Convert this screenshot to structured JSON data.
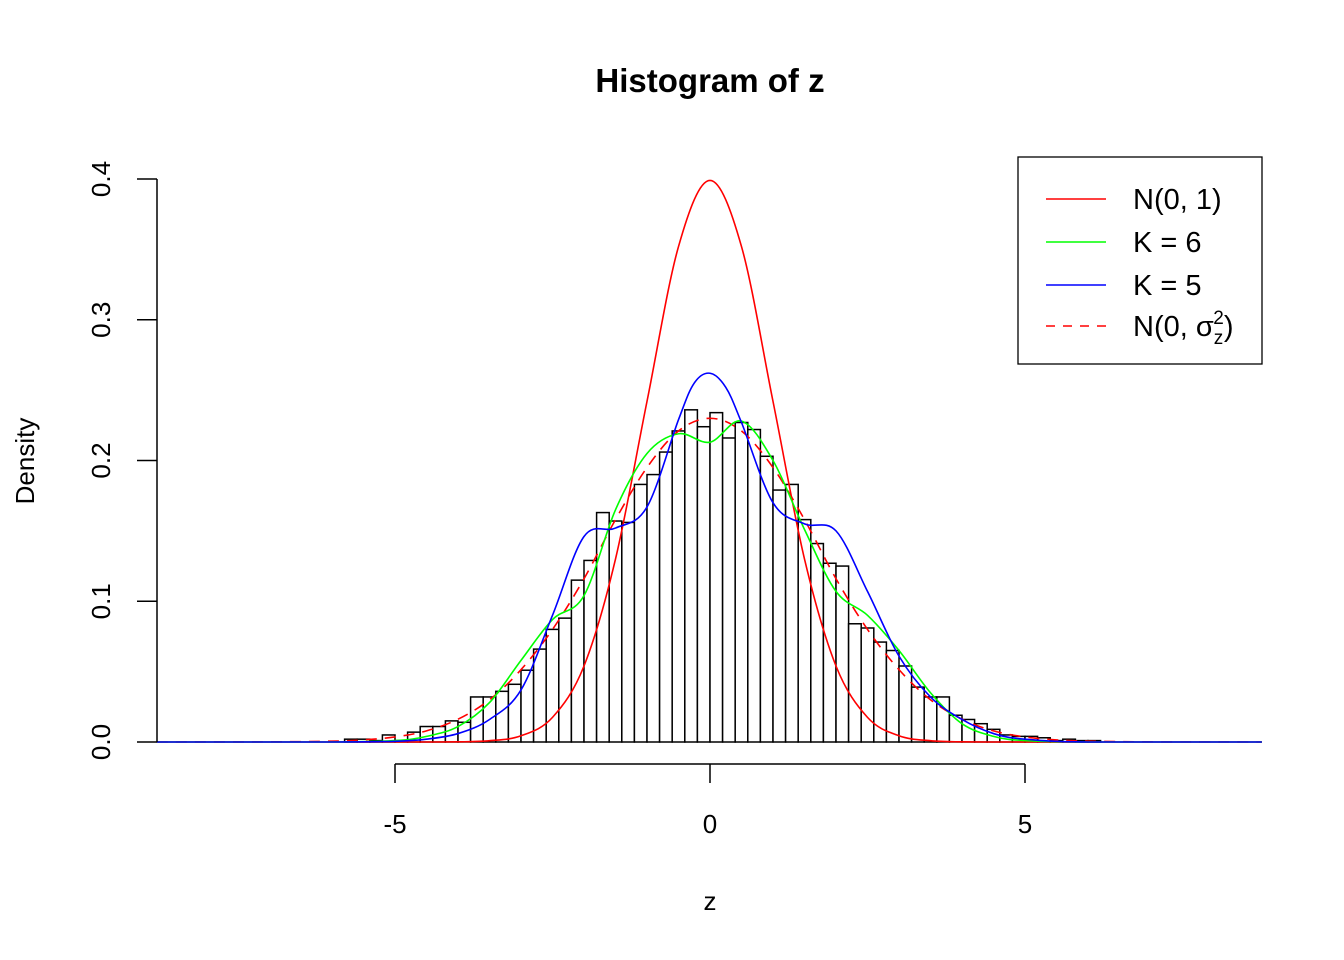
{
  "chart_data": {
    "type": "histogram",
    "title": "Histogram of z",
    "xlabel": "z",
    "ylabel": "Density",
    "xlim": [
      -8.78,
      8.76
    ],
    "ylim": [
      0,
      0.4
    ],
    "x_ticks": [
      "-5",
      "0",
      "5"
    ],
    "x_tick_values": [
      -5,
      0,
      5
    ],
    "y_ticks": [
      "0.0",
      "0.1",
      "0.2",
      "0.3",
      "0.4"
    ],
    "y_tick_values": [
      0,
      0.1,
      0.2,
      0.3,
      0.4
    ],
    "grid": false,
    "legend_position": "top-right",
    "histogram": {
      "bin_start": -5.8,
      "bin_width": 0.2,
      "densities": [
        0.002,
        0.002,
        0.001,
        0.005,
        0.001,
        0.007,
        0.011,
        0.011,
        0.015,
        0.014,
        0.032,
        0.032,
        0.036,
        0.041,
        0.051,
        0.066,
        0.08,
        0.088,
        0.115,
        0.129,
        0.163,
        0.157,
        0.156,
        0.183,
        0.19,
        0.206,
        0.221,
        0.236,
        0.224,
        0.234,
        0.216,
        0.227,
        0.222,
        0.203,
        0.179,
        0.183,
        0.158,
        0.141,
        0.127,
        0.125,
        0.084,
        0.081,
        0.071,
        0.065,
        0.054,
        0.039,
        0.032,
        0.032,
        0.019,
        0.016,
        0.013,
        0.009,
        0.005,
        0.004,
        0.004,
        0.003,
        0.001,
        0.002,
        0.001,
        0.001
      ]
    },
    "series": [
      {
        "name": "N(0, 1)",
        "color": "#ff0000",
        "dash": false,
        "x": [
          -8.78,
          -5,
          -4.5,
          -4,
          -3.5,
          -3,
          -2.5,
          -2,
          -1.5,
          -1,
          -0.5,
          0,
          0.5,
          1,
          1.5,
          2,
          2.5,
          3,
          3.5,
          4,
          4.5,
          5,
          8.76
        ],
        "y": [
          0,
          0,
          0,
          0.0001,
          0.0009,
          0.0044,
          0.0175,
          0.054,
          0.13,
          0.242,
          0.352,
          0.399,
          0.352,
          0.242,
          0.13,
          0.054,
          0.0175,
          0.0044,
          0.0009,
          0.0001,
          0,
          0,
          0
        ]
      },
      {
        "name": "K = 6",
        "color": "#00ff00",
        "dash": false,
        "x": [
          -8.78,
          -6,
          -5,
          -4.5,
          -4,
          -3.5,
          -3,
          -2.5,
          -2,
          -1.5,
          -1,
          -0.5,
          0,
          0.5,
          1,
          1.5,
          2,
          2.5,
          3,
          3.5,
          4,
          4.5,
          5,
          6,
          8.76
        ],
        "y": [
          0,
          0,
          0.001,
          0.004,
          0.011,
          0.028,
          0.058,
          0.087,
          0.104,
          0.165,
          0.205,
          0.219,
          0.213,
          0.228,
          0.2,
          0.151,
          0.107,
          0.09,
          0.065,
          0.035,
          0.013,
          0.004,
          0.001,
          0,
          0
        ]
      },
      {
        "name": "K = 5",
        "color": "#0000ff",
        "dash": false,
        "x": [
          -8.78,
          -6,
          -5,
          -4.5,
          -4,
          -3.5,
          -3,
          -2.5,
          -2,
          -1.5,
          -1,
          -0.5,
          -0.25,
          0,
          0.25,
          0.5,
          1,
          1.5,
          2,
          2.5,
          3,
          3.5,
          4,
          4.5,
          5,
          6,
          8.76
        ],
        "y": [
          0,
          0,
          0.0005,
          0.002,
          0.006,
          0.016,
          0.037,
          0.09,
          0.146,
          0.152,
          0.167,
          0.229,
          0.255,
          0.262,
          0.252,
          0.227,
          0.17,
          0.155,
          0.15,
          0.107,
          0.061,
          0.032,
          0.016,
          0.006,
          0.002,
          0,
          0
        ]
      },
      {
        "name_parts": {
          "main": "N(0, σ",
          "sub": "z",
          "sup": "2",
          "close": ")"
        },
        "color": "#ff0000",
        "dash": true,
        "x": [
          -8.78,
          -7,
          -6,
          -5.5,
          -5,
          -4.5,
          -4,
          -3.5,
          -3,
          -2.5,
          -2,
          -1.5,
          -1,
          -0.5,
          0,
          0.5,
          1,
          1.5,
          2,
          2.5,
          3,
          3.5,
          4,
          4.5,
          5,
          5.5,
          6,
          7,
          8.76
        ],
        "y": [
          0,
          0.0001,
          0.0006,
          0.0015,
          0.0036,
          0.0079,
          0.0162,
          0.03,
          0.0514,
          0.08,
          0.116,
          0.158,
          0.195,
          0.221,
          0.23,
          0.221,
          0.195,
          0.158,
          0.116,
          0.08,
          0.0514,
          0.03,
          0.0162,
          0.0079,
          0.0036,
          0.0015,
          0.0006,
          0.0001,
          0
        ]
      }
    ]
  }
}
